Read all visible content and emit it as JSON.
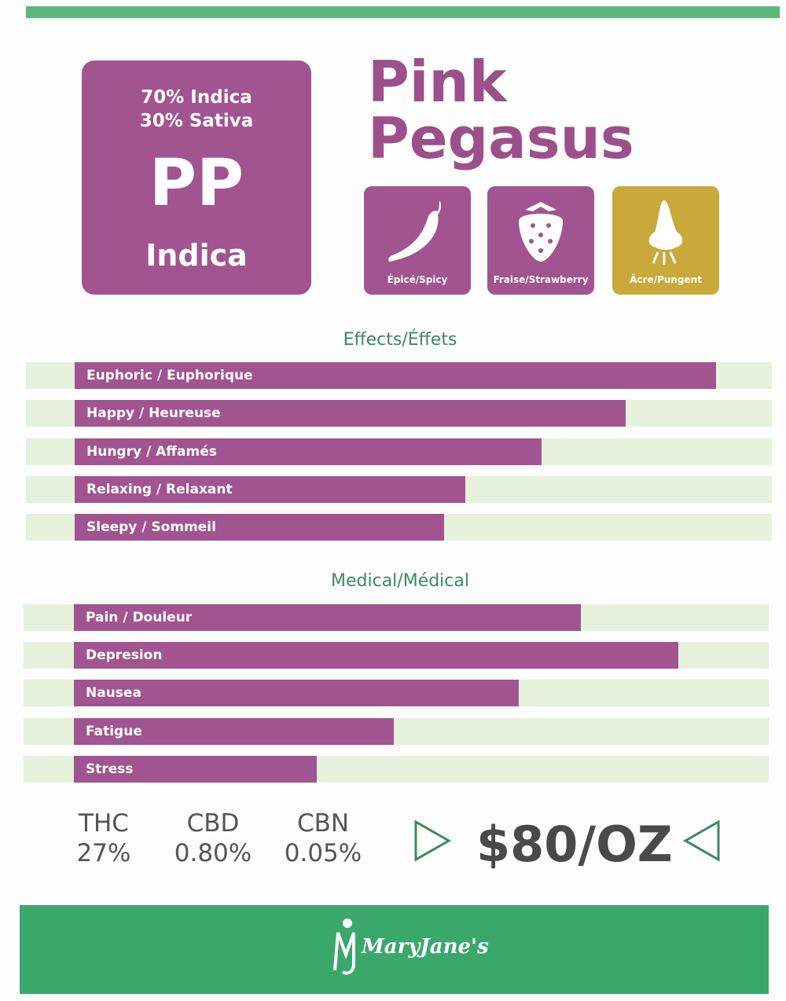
{
  "strain_card": {
    "ratio": [
      "70% Indica",
      "30% Sativa"
    ],
    "abbreviation": "PP",
    "type": "Indica"
  },
  "title": [
    "Pink",
    "Pegasus"
  ],
  "flavors": [
    {
      "label": "Épicé/Spicy"
    },
    {
      "label": "Fraise/Strawberry"
    },
    {
      "label": "Âcre/Pungent"
    }
  ],
  "effects": {
    "title": "Effects/Éffets",
    "xlim": [
      0,
      100
    ],
    "items": [
      {
        "label": "Euphoric / Euphorique",
        "value": 92
      },
      {
        "label": "Happy / Heureuse",
        "value": 79
      },
      {
        "label": "Hungry / Affamés",
        "value": 67
      },
      {
        "label": "Relaxing / Relaxant",
        "value": 56
      },
      {
        "label": "Sleepy  / Sommeil",
        "value": 53
      }
    ]
  },
  "medical": {
    "title": "Medical/Médical",
    "xlim": [
      0,
      100
    ],
    "items": [
      {
        "label": "Pain / Douleur",
        "value": 73
      },
      {
        "label": "Depresion",
        "value": 87
      },
      {
        "label": "Nausea",
        "value": 64
      },
      {
        "label": "Fatigue",
        "value": 46
      },
      {
        "label": "Stress",
        "value": 35
      }
    ]
  },
  "cannabinoids": [
    {
      "name": "THC",
      "value": "27%"
    },
    {
      "name": "CBD",
      "value": "0.80%"
    },
    {
      "name": "CBN",
      "value": "0.05%"
    }
  ],
  "price": "$80/OZ",
  "footer": {
    "brand": "MaryJane's"
  }
}
